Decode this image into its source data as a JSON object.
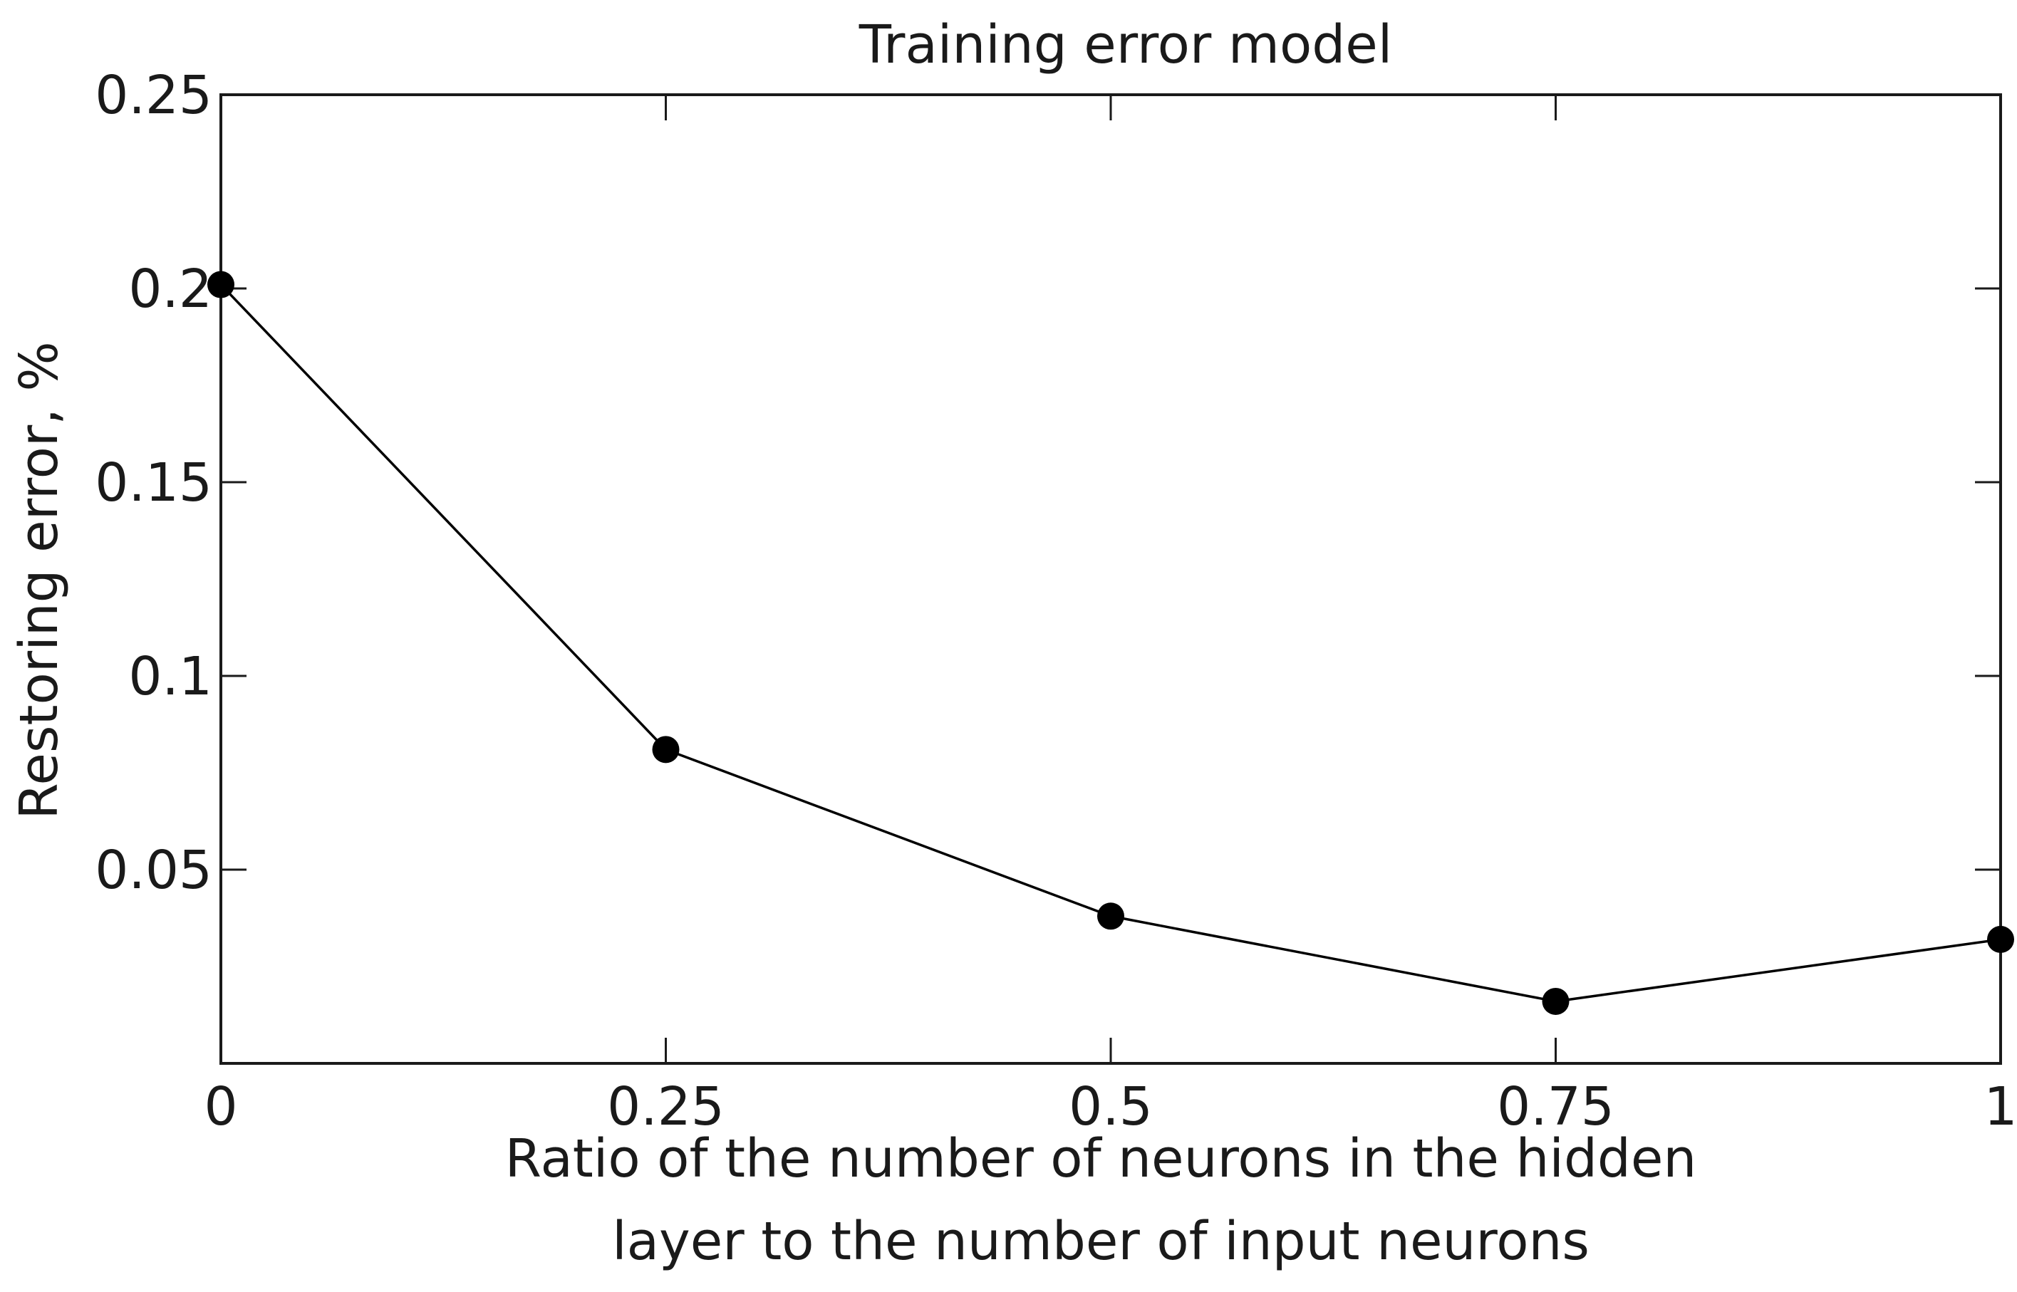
{
  "chart_data": {
    "type": "line",
    "title": "Training error model",
    "xlabel": "Ratio of the number of neurons in the hidden layer to the number of input neurons",
    "xlabel_lines": [
      "Ratio of the number of neurons in the hidden",
      "layer to the number of input neurons"
    ],
    "ylabel": "Restoring error, %",
    "xlim": [
      0,
      1
    ],
    "ylim": [
      0,
      0.25
    ],
    "x_ticks": [
      0,
      0.25,
      0.5,
      0.75,
      1
    ],
    "x_tick_labels": [
      "0",
      "0.25",
      "0.5",
      "0.75",
      "1"
    ],
    "y_ticks": [
      0.05,
      0.1,
      0.15,
      0.2,
      0.25
    ],
    "y_tick_labels": [
      "0.05",
      "0.1",
      "0.15",
      "0.2",
      "0.25"
    ],
    "grid": false,
    "series": [
      {
        "x": [
          0,
          0.25,
          0.5,
          0.75,
          1
        ],
        "y": [
          0.201,
          0.081,
          0.038,
          0.016,
          0.032
        ],
        "color": "#000000",
        "marker": "circle"
      }
    ]
  }
}
